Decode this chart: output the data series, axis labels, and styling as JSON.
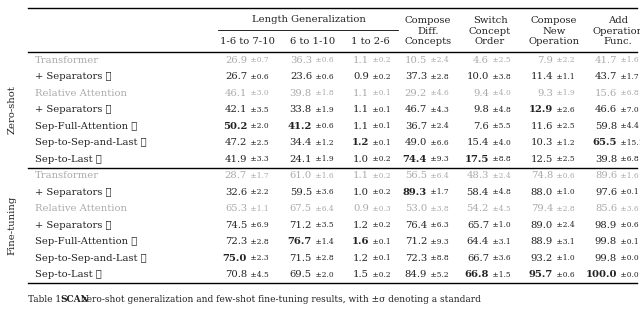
{
  "zeroshot_rows": [
    {
      "model": "Transformer",
      "gray": true,
      "vals": [
        [
          "26.9",
          "±0.7"
        ],
        [
          "36.3",
          "±0.6"
        ],
        [
          "1.1",
          "±0.2"
        ],
        [
          "10.5",
          "±2.4"
        ],
        [
          "4.6",
          "±2.5"
        ],
        [
          "7.9",
          "±2.2"
        ],
        [
          "41.7",
          "±1.6"
        ]
      ],
      "bold": []
    },
    {
      "model": "+ Separators ★",
      "gray": false,
      "vals": [
        [
          "26.7",
          "±0.6"
        ],
        [
          "23.6",
          "±0.6"
        ],
        [
          "0.9",
          "±0.2"
        ],
        [
          "37.3",
          "±2.8"
        ],
        [
          "10.0",
          "±3.8"
        ],
        [
          "11.4",
          "±1.1"
        ],
        [
          "43.7",
          "±1.7"
        ]
      ],
      "bold": []
    },
    {
      "model": "Relative Attention",
      "gray": true,
      "vals": [
        [
          "46.1",
          "±3.0"
        ],
        [
          "39.8",
          "±1.8"
        ],
        [
          "1.1",
          "±0.1"
        ],
        [
          "29.2",
          "±4.6"
        ],
        [
          "9.4",
          "±4.0"
        ],
        [
          "9.3",
          "±1.9"
        ],
        [
          "15.6",
          "±6.8"
        ]
      ],
      "bold": []
    },
    {
      "model": "+ Separators ★",
      "gray": false,
      "vals": [
        [
          "42.1",
          "±3.5"
        ],
        [
          "33.8",
          "±1.9"
        ],
        [
          "1.1",
          "±0.1"
        ],
        [
          "46.7",
          "±4.3"
        ],
        [
          "9.8",
          "±4.8"
        ],
        [
          "12.9",
          "±2.6"
        ],
        [
          "46.6",
          "±7.0"
        ]
      ],
      "bold": [
        5
      ]
    },
    {
      "model": "Sep-Full-Attention ★",
      "gray": false,
      "vals": [
        [
          "50.2",
          "±2.0"
        ],
        [
          "41.2",
          "±0.6"
        ],
        [
          "1.1",
          "±0.1"
        ],
        [
          "36.7",
          "±2.4"
        ],
        [
          "7.6",
          "±5.5"
        ],
        [
          "11.6",
          "±2.5"
        ],
        [
          "59.8",
          "±4.4"
        ]
      ],
      "bold": [
        0,
        1
      ]
    },
    {
      "model": "Sep-to-Sep-and-Last ★",
      "gray": false,
      "vals": [
        [
          "47.2",
          "±2.5"
        ],
        [
          "34.4",
          "±1.2"
        ],
        [
          "1.2",
          "±0.1"
        ],
        [
          "49.0",
          "±6.6"
        ],
        [
          "15.4",
          "±4.0"
        ],
        [
          "10.3",
          "±1.2"
        ],
        [
          "65.5",
          "±15.1"
        ]
      ],
      "bold": [
        2,
        6
      ]
    },
    {
      "model": "Sep-to-Last ★",
      "gray": false,
      "vals": [
        [
          "41.9",
          "±3.3"
        ],
        [
          "24.1",
          "±1.9"
        ],
        [
          "1.0",
          "±0.2"
        ],
        [
          "74.4",
          "±9.3"
        ],
        [
          "17.5",
          "±8.8"
        ],
        [
          "12.5",
          "±2.5"
        ],
        [
          "39.8",
          "±6.8"
        ]
      ],
      "bold": [
        3,
        4
      ]
    }
  ],
  "finetuning_rows": [
    {
      "model": "Transformer",
      "gray": true,
      "vals": [
        [
          "28.7",
          "±1.7"
        ],
        [
          "61.0",
          "±1.6"
        ],
        [
          "1.1",
          "±0.2"
        ],
        [
          "56.5",
          "±6.4"
        ],
        [
          "48.3",
          "±2.4"
        ],
        [
          "74.8",
          "±0.6"
        ],
        [
          "89.6",
          "±1.6"
        ]
      ],
      "bold": []
    },
    {
      "model": "+ Separators ★",
      "gray": false,
      "vals": [
        [
          "32.6",
          "±2.2"
        ],
        [
          "59.5",
          "±3.6"
        ],
        [
          "1.0",
          "±0.2"
        ],
        [
          "89.3",
          "±1.7"
        ],
        [
          "58.4",
          "±4.8"
        ],
        [
          "88.0",
          "±1.0"
        ],
        [
          "97.6",
          "±0.1"
        ]
      ],
      "bold": [
        3
      ]
    },
    {
      "model": "Relative Attention",
      "gray": true,
      "vals": [
        [
          "65.3",
          "±1.1"
        ],
        [
          "67.5",
          "±6.4"
        ],
        [
          "0.9",
          "±0.3"
        ],
        [
          "53.0",
          "±3.8"
        ],
        [
          "54.2",
          "±4.5"
        ],
        [
          "79.4",
          "±2.8"
        ],
        [
          "85.6",
          "±3.6"
        ]
      ],
      "bold": []
    },
    {
      "model": "+ Separators ★",
      "gray": false,
      "vals": [
        [
          "74.5",
          "±6.9"
        ],
        [
          "71.2",
          "±3.5"
        ],
        [
          "1.2",
          "±0.2"
        ],
        [
          "76.4",
          "±6.3"
        ],
        [
          "65.7",
          "±1.0"
        ],
        [
          "89.0",
          "±2.4"
        ],
        [
          "98.9",
          "±0.6"
        ]
      ],
      "bold": []
    },
    {
      "model": "Sep-Full-Attention ★",
      "gray": false,
      "vals": [
        [
          "72.3",
          "±2.8"
        ],
        [
          "76.7",
          "±1.4"
        ],
        [
          "1.6",
          "±0.1"
        ],
        [
          "71.2",
          "±9.3"
        ],
        [
          "64.4",
          "±3.1"
        ],
        [
          "88.9",
          "±3.1"
        ],
        [
          "99.8",
          "±0.1"
        ]
      ],
      "bold": [
        1,
        2
      ]
    },
    {
      "model": "Sep-to-Sep-and-Last ★",
      "gray": false,
      "vals": [
        [
          "75.0",
          "±2.3"
        ],
        [
          "71.5",
          "±2.8"
        ],
        [
          "1.2",
          "±0.1"
        ],
        [
          "72.3",
          "±8.8"
        ],
        [
          "66.7",
          "±3.6"
        ],
        [
          "93.2",
          "±1.0"
        ],
        [
          "99.8",
          "±0.0"
        ]
      ],
      "bold": [
        0
      ]
    },
    {
      "model": "Sep-to-Last ★",
      "gray": false,
      "vals": [
        [
          "70.8",
          "±4.5"
        ],
        [
          "69.5",
          "±2.0"
        ],
        [
          "1.5",
          "±0.2"
        ],
        [
          "84.9",
          "±5.2"
        ],
        [
          "66.8",
          "±1.5"
        ],
        [
          "95.7",
          "±0.6"
        ],
        [
          "100.0",
          "±0.0"
        ]
      ],
      "bold": [
        4,
        5,
        6
      ]
    }
  ],
  "gray_text": "#aaaaaa",
  "black_text": "#222222",
  "bg_color": "#ffffff",
  "fs_main": 7.2,
  "fs_small": 5.4,
  "fs_header": 7.2,
  "fs_caption": 6.5
}
